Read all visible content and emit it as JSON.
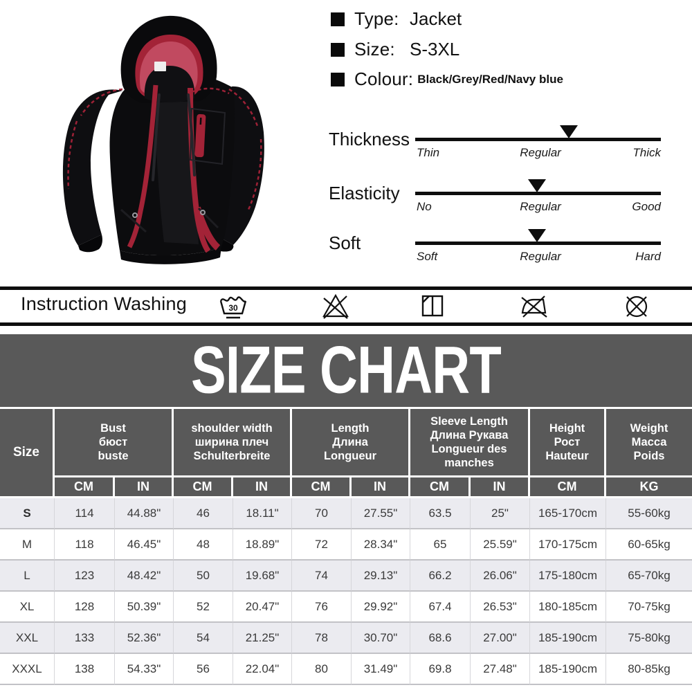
{
  "product_info": {
    "items": [
      {
        "label": "Type:",
        "value": "Jacket"
      },
      {
        "label": "Size:",
        "value": "S-3XL"
      },
      {
        "label": "Colour:",
        "value": "Black/Grey/Red/Navy blue"
      }
    ]
  },
  "scales": {
    "rows": [
      {
        "name": "Thickness",
        "left": "Thin",
        "mid": "Regular",
        "right": "Thick",
        "marker_pct": 62.5
      },
      {
        "name": "Elasticity",
        "left": "No",
        "mid": "Regular",
        "right": "Good",
        "marker_pct": 49.5
      },
      {
        "name": "Soft",
        "left": "Soft",
        "mid": "Regular",
        "right": "Hard",
        "marker_pct": 49.5
      }
    ]
  },
  "washing": {
    "label": "Instruction Washing",
    "wash_temp": "30",
    "icons": [
      "wash-30-icon",
      "do-not-bleach-icon",
      "dry-in-shade-icon",
      "do-not-iron-icon",
      "do-not-dry-clean-icon"
    ]
  },
  "size_chart": {
    "title": "SIZE CHART",
    "colors": {
      "header_bg": "#595959",
      "header_text": "#ffffff",
      "row_alt_bg": "#ebebf0",
      "row_bg": "#ffffff",
      "cell_text": "#3a3a3a"
    },
    "size_header": "Size",
    "groups": [
      {
        "lines": [
          "Bust",
          "бюст",
          "buste"
        ],
        "units": [
          "CM",
          "IN"
        ]
      },
      {
        "lines": [
          "shoulder width",
          "ширина плеч",
          "Schulterbreite"
        ],
        "units": [
          "CM",
          "IN"
        ]
      },
      {
        "lines": [
          "Length",
          "Длина",
          "Longueur"
        ],
        "units": [
          "CM",
          "IN"
        ]
      },
      {
        "lines": [
          "Sleeve Length",
          "Длина Рукава",
          "Longueur des",
          "manches"
        ],
        "units": [
          "CM",
          "IN"
        ]
      },
      {
        "lines": [
          "Height",
          "Рост",
          "Hauteur"
        ],
        "units": [
          "CM"
        ]
      },
      {
        "lines": [
          "Weight",
          "Масса",
          "Poids"
        ],
        "units": [
          "KG"
        ]
      }
    ],
    "rows": [
      {
        "size": "S",
        "cells": [
          "114",
          "44.88\"",
          "46",
          "18.11\"",
          "70",
          "27.55\"",
          "63.5",
          "25\"",
          "165-170cm",
          "55-60kg"
        ]
      },
      {
        "size": "M",
        "cells": [
          "118",
          "46.45\"",
          "48",
          "18.89\"",
          "72",
          "28.34\"",
          "65",
          "25.59\"",
          "170-175cm",
          "60-65kg"
        ]
      },
      {
        "size": "L",
        "cells": [
          "123",
          "48.42\"",
          "50",
          "19.68\"",
          "74",
          "29.13\"",
          "66.2",
          "26.06\"",
          "175-180cm",
          "65-70kg"
        ]
      },
      {
        "size": "XL",
        "cells": [
          "128",
          "50.39\"",
          "52",
          "20.47\"",
          "76",
          "29.92\"",
          "67.4",
          "26.53\"",
          "180-185cm",
          "70-75kg"
        ]
      },
      {
        "size": "XXL",
        "cells": [
          "133",
          "52.36\"",
          "54",
          "21.25\"",
          "78",
          "30.70\"",
          "68.6",
          "27.00\"",
          "185-190cm",
          "75-80kg"
        ]
      },
      {
        "size": "XXXL",
        "cells": [
          "138",
          "54.33\"",
          "56",
          "22.04\"",
          "80",
          "31.49\"",
          "69.8",
          "27.48\"",
          "185-190cm",
          "80-85kg"
        ]
      }
    ]
  }
}
